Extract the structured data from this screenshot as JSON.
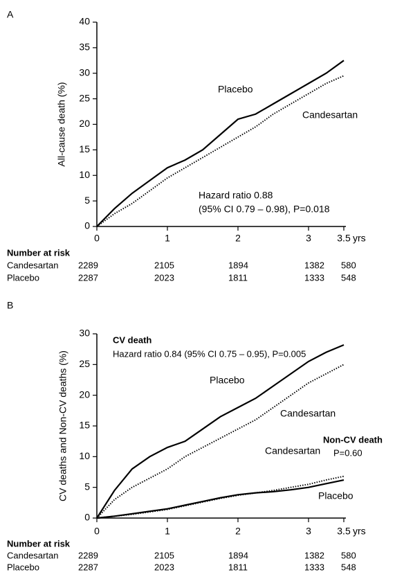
{
  "chart_data": [
    {
      "type": "line",
      "panel": "A",
      "ylabel": "All-cause death (%)",
      "x_unit": "yrs",
      "xlim": [
        0,
        3.5
      ],
      "xticks": [
        0,
        1,
        2,
        3,
        3.5
      ],
      "ylim": [
        0,
        40
      ],
      "yticks": [
        0,
        5,
        10,
        15,
        20,
        25,
        30,
        35,
        40
      ],
      "x": [
        0,
        0.25,
        0.5,
        0.75,
        1,
        1.25,
        1.5,
        1.75,
        2,
        2.25,
        2.5,
        2.75,
        3,
        3.25,
        3.5
      ],
      "series": [
        {
          "name": "Placebo",
          "color": "#000000",
          "line_style": "solid",
          "values": [
            0,
            3.5,
            6.5,
            9,
            11.5,
            13,
            15,
            18,
            21,
            22,
            24,
            26,
            28,
            30,
            32.5
          ]
        },
        {
          "name": "Candesartan",
          "color": "#000000",
          "line_style": "dotted",
          "values": [
            0,
            2.5,
            4.5,
            7,
            9.5,
            11.5,
            13.5,
            15.5,
            17.5,
            19.5,
            22,
            24,
            26,
            28,
            29.5
          ]
        }
      ],
      "annotations": [
        "Hazard ratio 0.88",
        "(95% CI 0.79 – 0.98), P=0.018"
      ],
      "risk_table": {
        "title": "Number at risk",
        "rows": [
          {
            "name": "Candesartan",
            "values": [
              2289,
              2105,
              1894,
              1382,
              580
            ]
          },
          {
            "name": "Placebo",
            "values": [
              2287,
              2023,
              1811,
              1333,
              548
            ]
          }
        ]
      }
    },
    {
      "type": "line",
      "panel": "B",
      "ylabel": "CV deaths and Non-CV deaths (%)",
      "x_unit": "yrs",
      "xlim": [
        0,
        3.5
      ],
      "xticks": [
        0,
        1,
        2,
        3,
        3.5
      ],
      "ylim": [
        0,
        30
      ],
      "yticks": [
        0,
        5,
        10,
        15,
        20,
        25,
        30
      ],
      "x": [
        0,
        0.25,
        0.5,
        0.75,
        1,
        1.25,
        1.5,
        1.75,
        2,
        2.25,
        2.5,
        2.75,
        3,
        3.25,
        3.5
      ],
      "series": [
        {
          "name": "Placebo",
          "color": "#000000",
          "line_style": "solid",
          "values": [
            0,
            4.5,
            8,
            10,
            11.5,
            12.5,
            14.5,
            16.5,
            18,
            19.5,
            21.5,
            23.5,
            25.5,
            27,
            28.2
          ]
        },
        {
          "name": "Candesartan",
          "color": "#000000",
          "line_style": "dotted",
          "values": [
            0,
            3,
            5,
            6.5,
            8,
            10,
            11.5,
            13,
            14.5,
            16,
            18,
            20,
            22,
            23.5,
            25
          ]
        },
        {
          "name": "Candesartan",
          "color": "#000000",
          "line_style": "dotted",
          "values": [
            0,
            0.3,
            0.6,
            1,
            1.4,
            2,
            2.6,
            3.2,
            3.7,
            4.1,
            4.5,
            5,
            5.5,
            6.2,
            6.8
          ]
        },
        {
          "name": "Placebo",
          "color": "#000000",
          "line_style": "solid",
          "values": [
            0,
            0.3,
            0.7,
            1.1,
            1.5,
            2.1,
            2.7,
            3.3,
            3.8,
            4.1,
            4.3,
            4.6,
            5,
            5.6,
            6.2
          ]
        }
      ],
      "annotations": [
        "CV death",
        "Hazard ratio 0.84 (95% CI 0.75 – 0.95), P=0.005",
        "Non-CV death",
        "P=0.60"
      ],
      "risk_table": {
        "title": "Number at risk",
        "rows": [
          {
            "name": "Candesartan",
            "values": [
              2289,
              2105,
              1894,
              1382,
              580
            ]
          },
          {
            "name": "Placebo",
            "values": [
              2287,
              2023,
              1811,
              1333,
              548
            ]
          }
        ]
      }
    }
  ]
}
